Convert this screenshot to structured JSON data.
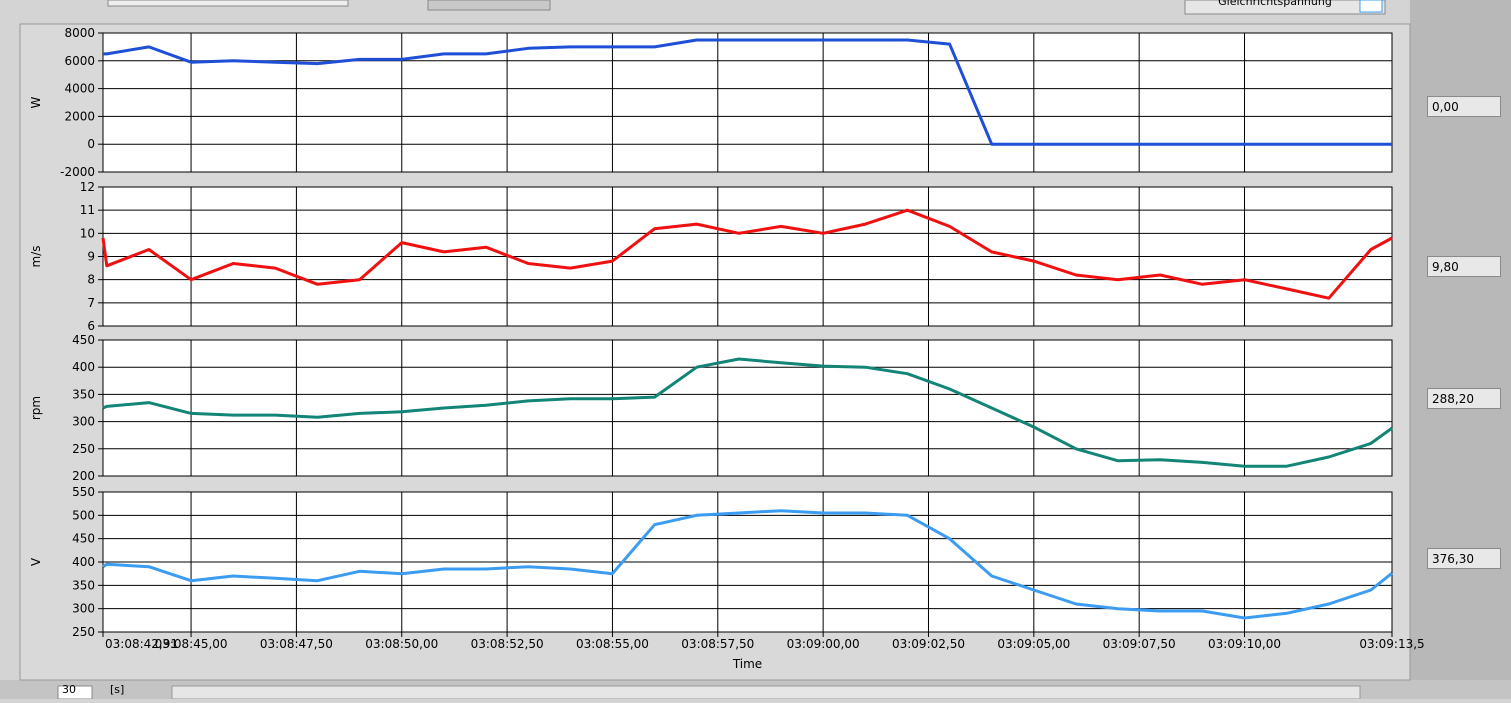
{
  "chart_data": [
    {
      "type": "line",
      "ylabel": "W",
      "ylim": [
        -2000,
        8000
      ],
      "yticks": [
        -2000,
        0,
        2000,
        4000,
        6000,
        8000
      ],
      "grid": true,
      "x": [
        "03:08:42,91",
        "03:08:43,00",
        "03:08:44,00",
        "03:08:45,00",
        "03:08:46,00",
        "03:08:47,00",
        "03:08:48,00",
        "03:08:49,00",
        "03:08:50,00",
        "03:08:51,00",
        "03:08:52,00",
        "03:08:53,00",
        "03:08:54,00",
        "03:08:55,00",
        "03:08:56,00",
        "03:08:57,00",
        "03:08:58,00",
        "03:08:59,00",
        "03:09:00,00",
        "03:09:01,00",
        "03:09:02,00",
        "03:09:03,00",
        "03:09:04,00",
        "03:09:05,00",
        "03:09:06,00",
        "03:09:07,00",
        "03:09:08,00",
        "03:09:09,00",
        "03:09:10,00",
        "03:09:11,00",
        "03:09:12,00",
        "03:09:13,00",
        "03:09:13,50"
      ],
      "xlim": [
        "03:08:42,91",
        "03:09:13,5"
      ],
      "series": [
        {
          "color": "#1e4fd6",
          "values": [
            6500,
            6500,
            7000,
            5900,
            6000,
            5900,
            5800,
            6100,
            6100,
            6500,
            6500,
            6900,
            7000,
            7000,
            7000,
            7500,
            7500,
            7500,
            7500,
            7500,
            7500,
            7200,
            0,
            0,
            0,
            0,
            0,
            0,
            0,
            0,
            0,
            0,
            0
          ]
        }
      ]
    },
    {
      "type": "line",
      "ylabel": "m/s",
      "ylim": [
        6,
        12
      ],
      "yticks": [
        6,
        7,
        8,
        9,
        10,
        11,
        12
      ],
      "grid": true,
      "x": [
        "03:08:42,91",
        "03:08:43,00",
        "03:08:44,00",
        "03:08:45,00",
        "03:08:46,00",
        "03:08:47,00",
        "03:08:48,00",
        "03:08:49,00",
        "03:08:50,00",
        "03:08:51,00",
        "03:08:52,00",
        "03:08:53,00",
        "03:08:54,00",
        "03:08:55,00",
        "03:08:56,00",
        "03:08:57,00",
        "03:08:58,00",
        "03:08:59,00",
        "03:09:00,00",
        "03:09:01,00",
        "03:09:02,00",
        "03:09:03,00",
        "03:09:04,00",
        "03:09:05,00",
        "03:09:06,00",
        "03:09:07,00",
        "03:09:08,00",
        "03:09:09,00",
        "03:09:10,00",
        "03:09:11,00",
        "03:09:12,00",
        "03:09:13,00",
        "03:09:13,50"
      ],
      "xlim": [
        "03:08:42,91",
        "03:09:13,5"
      ],
      "series": [
        {
          "color": "#f01010",
          "values": [
            9.8,
            8.6,
            9.3,
            8.0,
            8.7,
            8.5,
            7.8,
            8.0,
            9.6,
            9.2,
            9.4,
            8.7,
            8.5,
            8.8,
            10.2,
            10.4,
            10.0,
            10.3,
            10.0,
            10.4,
            11.0,
            10.3,
            9.2,
            8.8,
            8.2,
            8.0,
            8.2,
            7.8,
            8.0,
            7.6,
            7.2,
            9.3,
            9.8
          ]
        }
      ]
    },
    {
      "type": "line",
      "ylabel": "rpm",
      "ylim": [
        200,
        450
      ],
      "yticks": [
        200,
        250,
        300,
        350,
        400,
        450
      ],
      "grid": true,
      "x": [
        "03:08:42,91",
        "03:08:43,00",
        "03:08:44,00",
        "03:08:45,00",
        "03:08:46,00",
        "03:08:47,00",
        "03:08:48,00",
        "03:08:49,00",
        "03:08:50,00",
        "03:08:51,00",
        "03:08:52,00",
        "03:08:53,00",
        "03:08:54,00",
        "03:08:55,00",
        "03:08:56,00",
        "03:08:57,00",
        "03:08:58,00",
        "03:08:59,00",
        "03:09:00,00",
        "03:09:01,00",
        "03:09:02,00",
        "03:09:03,00",
        "03:09:04,00",
        "03:09:05,00",
        "03:09:06,00",
        "03:09:07,00",
        "03:09:08,00",
        "03:09:09,00",
        "03:09:10,00",
        "03:09:11,00",
        "03:09:12,00",
        "03:09:13,00",
        "03:09:13,50"
      ],
      "xlim": [
        "03:08:42,91",
        "03:09:13,5"
      ],
      "series": [
        {
          "color": "#138577",
          "values": [
            325,
            328,
            335,
            315,
            312,
            312,
            308,
            315,
            318,
            325,
            330,
            338,
            342,
            342,
            345,
            400,
            415,
            408,
            402,
            400,
            388,
            360,
            325,
            290,
            250,
            228,
            230,
            225,
            218,
            218,
            235,
            260,
            288
          ]
        }
      ]
    },
    {
      "type": "line",
      "ylabel": "V",
      "xlabel": "Time",
      "ylim": [
        250,
        550
      ],
      "yticks": [
        250,
        300,
        350,
        400,
        450,
        500,
        550
      ],
      "grid": true,
      "x": [
        "03:08:42,91",
        "03:08:43,00",
        "03:08:44,00",
        "03:08:45,00",
        "03:08:46,00",
        "03:08:47,00",
        "03:08:48,00",
        "03:08:49,00",
        "03:08:50,00",
        "03:08:51,00",
        "03:08:52,00",
        "03:08:53,00",
        "03:08:54,00",
        "03:08:55,00",
        "03:08:56,00",
        "03:08:57,00",
        "03:08:58,00",
        "03:08:59,00",
        "03:09:00,00",
        "03:09:01,00",
        "03:09:02,00",
        "03:09:03,00",
        "03:09:04,00",
        "03:09:05,00",
        "03:09:06,00",
        "03:09:07,00",
        "03:09:08,00",
        "03:09:09,00",
        "03:09:10,00",
        "03:09:11,00",
        "03:09:12,00",
        "03:09:13,00",
        "03:09:13,50"
      ],
      "xlim": [
        "03:08:42,91",
        "03:09:13,5"
      ],
      "xticks": [
        "03:08:42,91",
        "03:08:45,00",
        "03:08:47,50",
        "03:08:50,00",
        "03:08:52,50",
        "03:08:55,00",
        "03:08:57,50",
        "03:09:00,00",
        "03:09:02,50",
        "03:09:05,00",
        "03:09:07,50",
        "03:09:10,00",
        "03:09:13,5"
      ],
      "series": [
        {
          "color": "#3b9cf2",
          "values": [
            390,
            395,
            390,
            360,
            370,
            365,
            360,
            380,
            375,
            385,
            385,
            390,
            385,
            375,
            480,
            500,
            505,
            510,
            505,
            505,
            500,
            450,
            370,
            340,
            310,
            300,
            295,
            295,
            280,
            290,
            310,
            340,
            376
          ]
        }
      ]
    }
  ],
  "top_label": "Gleichrichtspannung",
  "indicators": [
    "0,00",
    "9,80",
    "288,20",
    "376,30"
  ],
  "history": {
    "length": "30",
    "unit": "[s]"
  }
}
